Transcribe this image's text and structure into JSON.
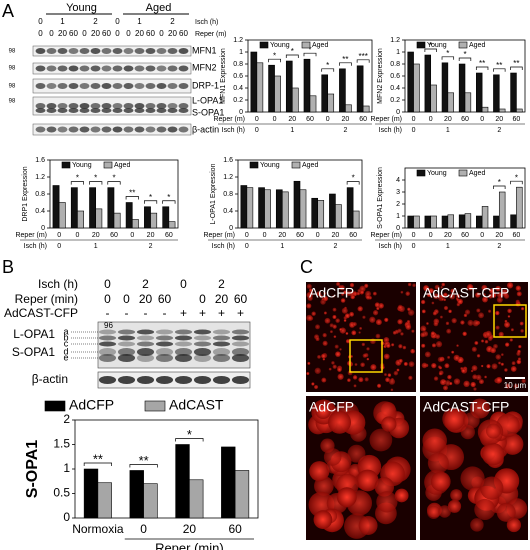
{
  "panel_labels": [
    "A",
    "B",
    "C"
  ],
  "chart_data": [
    {
      "type": "bar",
      "ylabel": "MFN1 Expression",
      "categories": [
        "0",
        "0",
        "20",
        "60",
        "0",
        "20",
        "60"
      ],
      "x_groups": [
        "0",
        "1",
        "1",
        "1",
        "2",
        "2",
        "2"
      ],
      "xlabel": "Reper (m)",
      "group_label": "Isch (h)",
      "series": [
        {
          "name": "Young",
          "color": "#111111",
          "values": [
            1.0,
            0.78,
            0.85,
            0.88,
            0.62,
            0.72,
            0.77
          ]
        },
        {
          "name": "Aged",
          "color": "#b0b0b0",
          "values": [
            0.82,
            0.6,
            0.4,
            0.27,
            0.3,
            0.12,
            0.1
          ]
        }
      ],
      "sig": [
        null,
        "*",
        "*",
        "*",
        "*",
        "**",
        "***"
      ],
      "ylim": [
        0,
        1.2
      ],
      "yticks": [
        0,
        0.2,
        0.4,
        0.6,
        0.8,
        1,
        1.2
      ]
    },
    {
      "type": "bar",
      "ylabel": "MFN2 Expression",
      "categories": [
        "0",
        "0",
        "20",
        "60",
        "0",
        "20",
        "60"
      ],
      "x_groups": [
        "0",
        "1",
        "1",
        "1",
        "2",
        "2",
        "2"
      ],
      "xlabel": "Reper (m)",
      "group_label": "Isch (h)",
      "series": [
        {
          "name": "Young",
          "color": "#111111",
          "values": [
            1.0,
            0.95,
            0.82,
            0.8,
            0.65,
            0.62,
            0.65
          ]
        },
        {
          "name": "Aged",
          "color": "#b0b0b0",
          "values": [
            0.8,
            0.45,
            0.32,
            0.32,
            0.08,
            0.05,
            0.05
          ]
        }
      ],
      "sig": [
        null,
        "*",
        "*",
        "*",
        "**",
        "**",
        "**"
      ],
      "ylim": [
        0,
        1.2
      ],
      "yticks": [
        0,
        0.2,
        0.4,
        0.6,
        0.8,
        1,
        1.2
      ]
    },
    {
      "type": "bar",
      "ylabel": "DRP1 Expression",
      "categories": [
        "0",
        "0",
        "20",
        "60",
        "0",
        "20",
        "60"
      ],
      "x_groups": [
        "0",
        "1",
        "1",
        "1",
        "2",
        "2",
        "2"
      ],
      "xlabel": "Reper (m)",
      "group_label": "Isch (h)",
      "series": [
        {
          "name": "Young",
          "color": "#111111",
          "values": [
            1.0,
            0.95,
            0.95,
            0.95,
            0.6,
            0.5,
            0.5
          ]
        },
        {
          "name": "Aged",
          "color": "#b0b0b0",
          "values": [
            0.6,
            0.4,
            0.45,
            0.35,
            0.2,
            0.35,
            0.15
          ]
        }
      ],
      "sig": [
        null,
        "*",
        "*",
        "*",
        "**",
        "*",
        "*"
      ],
      "ylim": [
        0,
        1.6
      ],
      "yticks": [
        0,
        0.4,
        0.8,
        1.2,
        1.6
      ]
    },
    {
      "type": "bar",
      "ylabel": "L-OPA1 Expression",
      "categories": [
        "0",
        "0",
        "20",
        "60",
        "0",
        "20",
        "60"
      ],
      "x_groups": [
        "0",
        "1",
        "1",
        "1",
        "2",
        "2",
        "2"
      ],
      "xlabel": "Reper (m)",
      "group_label": "Isch (h)",
      "series": [
        {
          "name": "Young",
          "color": "#111111",
          "values": [
            1.0,
            0.95,
            0.9,
            1.1,
            0.7,
            0.8,
            0.95
          ]
        },
        {
          "name": "Aged",
          "color": "#b0b0b0",
          "values": [
            0.95,
            0.9,
            0.85,
            0.9,
            0.65,
            0.55,
            0.4
          ]
        }
      ],
      "sig": [
        null,
        null,
        null,
        null,
        null,
        null,
        "*"
      ],
      "ylim": [
        0,
        1.6
      ],
      "yticks": [
        0,
        0.4,
        0.8,
        1.2,
        1.6
      ]
    },
    {
      "type": "bar",
      "ylabel": "S-OPA1 Expression",
      "categories": [
        "0",
        "0",
        "20",
        "60",
        "0",
        "20",
        "60"
      ],
      "x_groups": [
        "0",
        "1",
        "1",
        "1",
        "2",
        "2",
        "2"
      ],
      "xlabel": "Reper (m)",
      "group_label": "Isch (h)",
      "series": [
        {
          "name": "Young",
          "color": "#111111",
          "values": [
            1.0,
            1.0,
            1.0,
            1.1,
            1.0,
            1.0,
            1.1
          ]
        },
        {
          "name": "Aged",
          "color": "#b0b0b0",
          "values": [
            1.0,
            1.0,
            1.1,
            1.2,
            1.8,
            3.0,
            3.4
          ]
        }
      ],
      "sig": [
        null,
        null,
        null,
        null,
        null,
        "*",
        "*"
      ],
      "ylim": [
        0,
        5
      ],
      "yticks": [
        0,
        1,
        2,
        3,
        4
      ]
    },
    {
      "type": "bar",
      "ylabel": "S-OPA1",
      "categories": [
        "Normoxia",
        "0",
        "20",
        "60"
      ],
      "xlabel": "Reper (min)",
      "series": [
        {
          "name": "AdCFP",
          "color": "#000000",
          "values": [
            1.0,
            0.97,
            1.5,
            1.45
          ]
        },
        {
          "name": "AdCAST",
          "color": "#a6a6a6",
          "values": [
            0.72,
            0.7,
            0.78,
            0.97
          ]
        }
      ],
      "sig": [
        "**",
        "**",
        "*",
        null
      ],
      "ylim": [
        0,
        2
      ],
      "yticks": [
        0,
        0.5,
        1,
        1.5,
        2
      ]
    }
  ],
  "blot_a": {
    "groups": [
      "Young",
      "Aged"
    ],
    "isch_label": "Isch (h)",
    "reper_label": "Reper (m)",
    "isch": [
      "0",
      "1",
      "1",
      "1",
      "2",
      "2",
      "2"
    ],
    "reper": [
      "0",
      "0",
      "20",
      "60",
      "0",
      "20",
      "60"
    ],
    "bands": [
      "MFN1",
      "MFN2",
      "DRP-1",
      "L-OPA1",
      "S-OPA1",
      "β-actin"
    ],
    "markers": [
      "98",
      "98",
      "98",
      "98"
    ]
  },
  "blot_b": {
    "isch_label": "Isch (h)",
    "reper_label": "Reper (min)",
    "virus_label": "AdCAST-CFP",
    "isch": [
      "0",
      "2",
      "2",
      "2",
      "0",
      "2",
      "2",
      "2"
    ],
    "reper": [
      "0",
      "0",
      "20",
      "60",
      null,
      "0",
      "20",
      "60"
    ],
    "virus": [
      "-",
      "-",
      "-",
      "-",
      "+",
      "+",
      "+",
      "+"
    ],
    "bands": [
      "L-OPA1",
      "S-OPA1",
      "β-actin"
    ],
    "isoforms": [
      "a",
      "b",
      "c",
      "d",
      "e"
    ],
    "marker": "96"
  },
  "images": {
    "labels": [
      "AdCFP",
      "AdCAST-CFP",
      "AdCFP",
      "AdCAST-CFP"
    ],
    "scale_bar": "10 μm"
  }
}
